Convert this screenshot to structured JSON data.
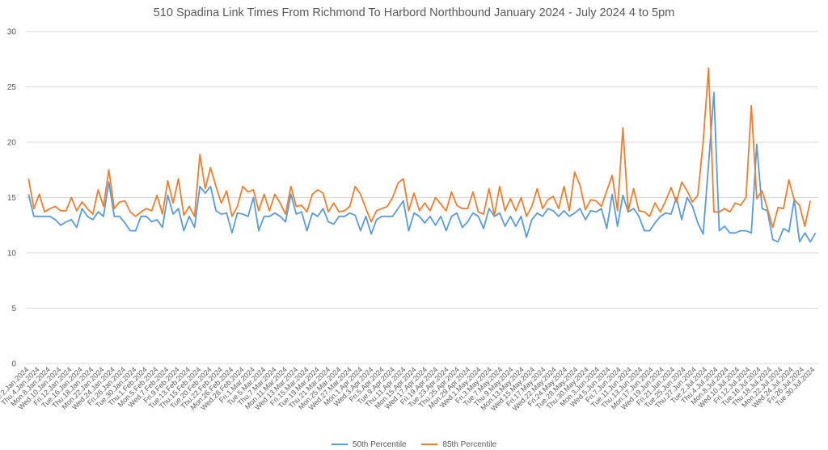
{
  "chart_data": {
    "type": "line",
    "title": "510 Spadina Link Times From Richmond To Harbord Northbound January 2024 - July 2024 4 to 5pm",
    "xlabel": "",
    "ylabel": "",
    "ylim": [
      0,
      30
    ],
    "yticks": [
      0,
      5,
      10,
      15,
      20,
      25,
      30
    ],
    "grid": true,
    "legend_position": "bottom",
    "colors": {
      "p50": "#5b9bd5",
      "p85": "#ed7d31",
      "grid": "#d9d9d9"
    },
    "x_tick_labels": [
      "Tue.2.Jan.2024",
      "Thu.4.Jan.2024",
      "Mon.8.Jan.2024",
      "Wed.10.Jan.2024",
      "Fri.12.Jan.2024",
      "Tue.16.Jan.2024",
      "Thu.18.Jan.2024",
      "Mon.22.Jan.2024",
      "Wed.24.Jan.2024",
      "Fri.26.Jan.2024",
      "Tue.30.Jan.2024",
      "Thu.1.Feb.2024",
      "Mon.5.Feb.2024",
      "Wed.7.Feb.2024",
      "Fri.9.Feb.2024",
      "Tue.13.Feb.2024",
      "Thu.15.Feb.2024",
      "Tue.20.Feb.2024",
      "Thu.22.Feb.2024",
      "Mon.26.Feb.2024",
      "Wed.28.Feb.2024",
      "Fri.1.Mar.2024",
      "Tue.5.Mar.2024",
      "Thu.7.Mar.2024",
      "Mon.11.Mar.2024",
      "Wed.13.Mar.2024",
      "Fri.15.Mar.2024",
      "Tue.19.Mar.2024",
      "Thu.21.Mar.2024",
      "Mon.25.Mar.2024",
      "Wed.27.Mar.2024",
      "Mon.1.Apr.2024",
      "Wed.3.Apr.2024",
      "Fri.5.Apr.2024",
      "Tue.9.Apr.2024",
      "Thu.11.Apr.2024",
      "Mon.15.Apr.2024",
      "Wed.17.Apr.2024",
      "Fri.19.Apr.2024",
      "Tue.23.Apr.2024",
      "Thu.25.Apr.2024",
      "Mon.29.Apr.2024",
      "Wed.1.May.2024",
      "Fri.3.May.2024",
      "Tue.7.May.2024",
      "Thu.9.May.2024",
      "Mon.13.May.2024",
      "Wed.15.May.2024",
      "Fri.17.May.2024",
      "Wed.22.May.2024",
      "Fri.24.May.2024",
      "Tue.28.May.2024",
      "Thu.30.May.2024",
      "Mon.3.Jun.2024",
      "Wed.5.Jun.2024",
      "Fri.7.Jun.2024",
      "Tue.11.Jun.2024",
      "Thu.13.Jun.2024",
      "Mon.17.Jun.2024",
      "Wed.19.Jun.2024",
      "Fri.21.Jun.2024",
      "Tue.25.Jun.2024",
      "Thu.27.Jun.2024",
      "Tue.2.Jul.2024",
      "Thu.4.Jul.2024",
      "Mon.8.Jul.2024",
      "Wed.10.Jul.2024",
      "Fri.12.Jul.2024",
      "Tue.16.Jul.2024",
      "Thu.18.Jul.2024",
      "Mon.22.Jul.2024",
      "Wed.24.Jul.2024",
      "Fri.26.Jul.2024",
      "Tue.30.Jul.2024"
    ],
    "series": [
      {
        "name": "50th Percentile",
        "values": [
          15.3,
          13.3,
          13.3,
          13.3,
          13.3,
          13.0,
          12.5,
          12.8,
          13.0,
          12.3,
          14.0,
          13.3,
          13.0,
          13.7,
          13.3,
          16.4,
          13.3,
          13.3,
          12.7,
          12.0,
          12.0,
          13.3,
          13.3,
          12.8,
          13.0,
          12.3,
          15.2,
          13.5,
          14.0,
          12.0,
          13.3,
          12.3,
          16.0,
          15.4,
          16.0,
          13.8,
          13.5,
          13.6,
          11.8,
          13.6,
          13.5,
          13.3,
          15.0,
          12.0,
          13.3,
          13.3,
          13.6,
          13.3,
          12.8,
          15.3,
          13.5,
          13.7,
          12.0,
          13.6,
          13.3,
          14.0,
          12.8,
          12.6,
          13.3,
          13.3,
          13.6,
          13.4,
          12.0,
          13.3,
          11.7,
          13.0,
          13.3,
          13.3,
          13.3,
          14.0,
          14.7,
          12.0,
          13.6,
          13.3,
          12.7,
          13.3,
          12.5,
          13.3,
          12.0,
          13.3,
          13.6,
          12.3,
          12.8,
          13.6,
          13.3,
          12.2,
          14.0,
          13.3,
          13.6,
          12.4,
          13.3,
          12.4,
          13.3,
          11.4,
          13.0,
          13.6,
          13.3,
          14.0,
          13.8,
          13.3,
          13.8,
          13.3,
          13.6,
          14.0,
          13.0,
          13.8,
          13.7,
          14.0,
          12.2,
          15.3,
          12.4,
          15.2,
          13.7,
          14.0,
          13.3,
          12.0,
          12.0,
          12.7,
          13.3,
          13.6,
          13.5,
          15.0,
          13.0,
          15.0,
          14.2,
          12.7,
          11.7,
          18.0,
          24.5,
          12.0,
          12.4,
          11.8,
          11.8,
          12.0,
          12.0,
          11.8,
          19.8,
          14.0,
          13.8,
          11.2,
          11.0,
          12.2,
          11.9,
          14.8,
          11.0,
          11.8,
          11.0,
          11.8
        ]
      },
      {
        "name": "85th Percentile",
        "values": [
          16.7,
          14.0,
          15.3,
          13.7,
          14.0,
          14.2,
          13.8,
          13.8,
          15.0,
          13.8,
          14.6,
          14.0,
          13.5,
          15.7,
          14.2,
          17.5,
          14.0,
          14.6,
          14.7,
          13.7,
          13.3,
          13.7,
          14.0,
          13.8,
          15.2,
          13.5,
          16.5,
          14.5,
          16.7,
          13.4,
          14.2,
          13.3,
          18.9,
          15.8,
          17.7,
          16.0,
          14.5,
          15.6,
          13.3,
          14.2,
          16.0,
          15.5,
          15.7,
          13.8,
          15.3,
          13.8,
          15.3,
          14.5,
          13.5,
          16.0,
          14.2,
          14.3,
          13.7,
          15.3,
          15.7,
          15.4,
          13.7,
          14.5,
          13.7,
          13.8,
          14.2,
          16.0,
          15.3,
          14.0,
          12.8,
          13.8,
          14.0,
          14.2,
          15.0,
          16.3,
          16.7,
          13.8,
          15.4,
          13.8,
          14.5,
          13.8,
          15.0,
          14.4,
          13.8,
          15.5,
          14.3,
          14.0,
          14.0,
          15.5,
          13.7,
          13.5,
          15.8,
          13.4,
          16.0,
          13.8,
          14.9,
          13.8,
          15.0,
          13.3,
          14.2,
          15.8,
          14.0,
          14.8,
          15.1,
          14.0,
          16.0,
          13.8,
          17.3,
          16.1,
          13.9,
          14.8,
          14.7,
          14.2,
          15.6,
          17.0,
          13.8,
          21.3,
          13.8,
          15.8,
          13.8,
          13.7,
          13.3,
          14.5,
          13.7,
          14.7,
          15.9,
          14.6,
          16.4,
          15.6,
          14.6,
          15.2,
          20.0,
          26.7,
          13.7,
          13.7,
          14.0,
          13.7,
          14.5,
          14.3,
          15.0,
          23.3,
          14.9,
          15.6,
          14.0,
          12.3,
          14.1,
          14.0,
          16.6,
          14.8,
          14.3,
          12.4,
          14.7
        ]
      }
    ]
  }
}
